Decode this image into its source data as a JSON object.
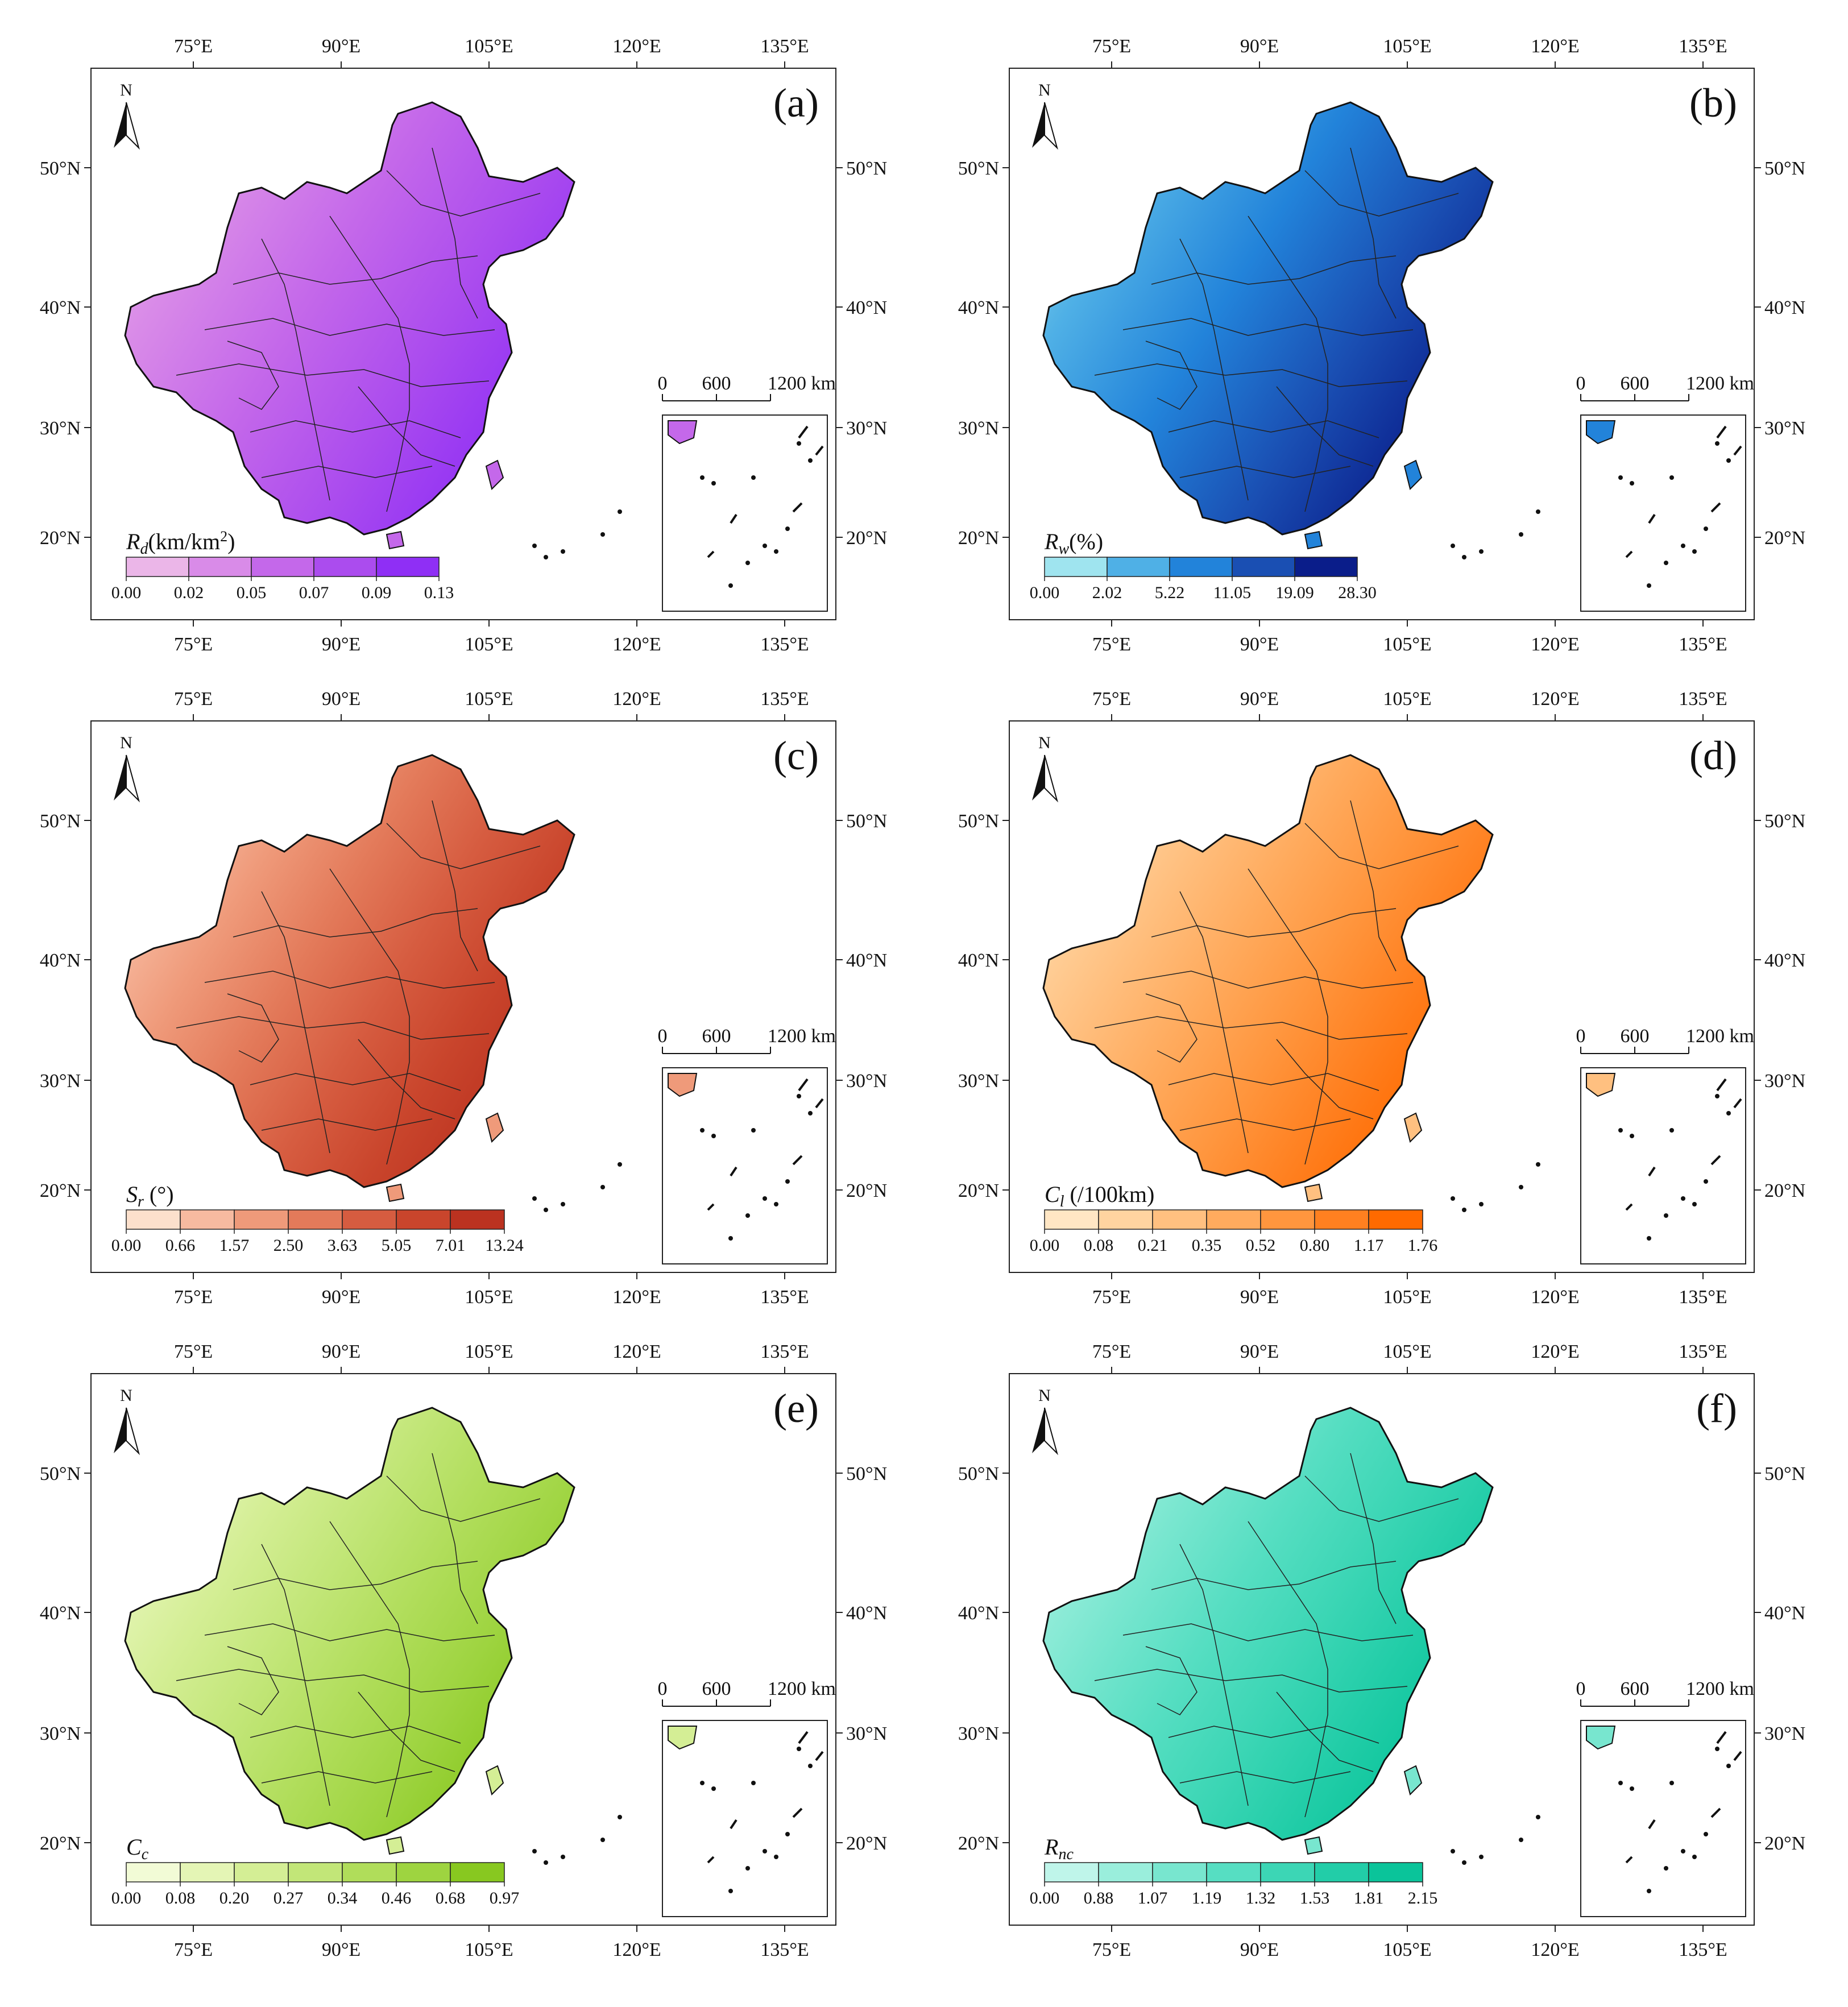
{
  "figure": {
    "lon_ticks": [
      "75°E",
      "90°E",
      "105°E",
      "120°E",
      "135°E"
    ],
    "lat_ticks": [
      "50°N",
      "40°N",
      "30°N",
      "20°N"
    ],
    "north_label": "N",
    "scale_bar": {
      "labels": [
        "0",
        "600",
        "1200 km"
      ]
    }
  },
  "panels": [
    {
      "label": "(a)",
      "legend_title_main": "R",
      "legend_title_sub": "d",
      "legend_title_rest": "(km/km",
      "legend_title_sup": "2",
      "legend_title_end": ")",
      "breaks": [
        "0.00",
        "0.02",
        "0.05",
        "0.07",
        "0.09",
        "0.13"
      ],
      "colors": [
        "#ebb6e8",
        "#d98be8",
        "#c468ea",
        "#ab4cee",
        "#8f2ff5"
      ]
    },
    {
      "label": "(b)",
      "legend_title_main": "R",
      "legend_title_sub": "w",
      "legend_title_rest": "(%)",
      "legend_title_sup": "",
      "legend_title_end": "",
      "breaks": [
        "0.00",
        "2.02",
        "5.22",
        "11.05",
        "19.09",
        "28.30"
      ],
      "colors": [
        "#9fe4ef",
        "#4fb0e6",
        "#2283da",
        "#1a4fb3",
        "#0a1d8a"
      ]
    },
    {
      "label": "(c)",
      "legend_title_main": "S",
      "legend_title_sub": "r",
      "legend_title_rest": " (°)",
      "legend_title_sup": "",
      "legend_title_end": "",
      "breaks": [
        "0.00",
        "0.66",
        "1.57",
        "2.50",
        "3.63",
        "5.05",
        "7.01",
        "13.24"
      ],
      "colors": [
        "#fce0cc",
        "#f7baa0",
        "#ef9a7a",
        "#e37a5a",
        "#d65c40",
        "#c9452c",
        "#bb3220"
      ]
    },
    {
      "label": "(d)",
      "legend_title_main": "C",
      "legend_title_sub": "l",
      "legend_title_rest": " (/100km)",
      "legend_title_sup": "",
      "legend_title_end": "",
      "breaks": [
        "0.00",
        "0.08",
        "0.21",
        "0.35",
        "0.52",
        "0.80",
        "1.17",
        "1.76"
      ],
      "colors": [
        "#ffe6c4",
        "#ffd4a0",
        "#ffc080",
        "#ffab5e",
        "#ff963e",
        "#ff8020",
        "#ff6a00"
      ]
    },
    {
      "label": "(e)",
      "legend_title_main": "C",
      "legend_title_sub": "c",
      "legend_title_rest": "",
      "legend_title_sup": "",
      "legend_title_end": "",
      "breaks": [
        "0.00",
        "0.08",
        "0.20",
        "0.27",
        "0.34",
        "0.46",
        "0.68",
        "0.97"
      ],
      "colors": [
        "#f2fbd6",
        "#e4f5b5",
        "#d4ee95",
        "#c2e678",
        "#b0dd5a",
        "#9ed440",
        "#88c820"
      ]
    },
    {
      "label": "(f)",
      "legend_title_main": "R",
      "legend_title_sub": "nc",
      "legend_title_rest": "",
      "legend_title_sup": "",
      "legend_title_end": "",
      "breaks": [
        "0.00",
        "0.88",
        "1.07",
        "1.19",
        "1.32",
        "1.53",
        "1.81",
        "2.15"
      ],
      "colors": [
        "#bff5ea",
        "#9aeedc",
        "#78e6cf",
        "#56dec2",
        "#3cd6b5",
        "#22cda8",
        "#0ac49a"
      ]
    }
  ]
}
